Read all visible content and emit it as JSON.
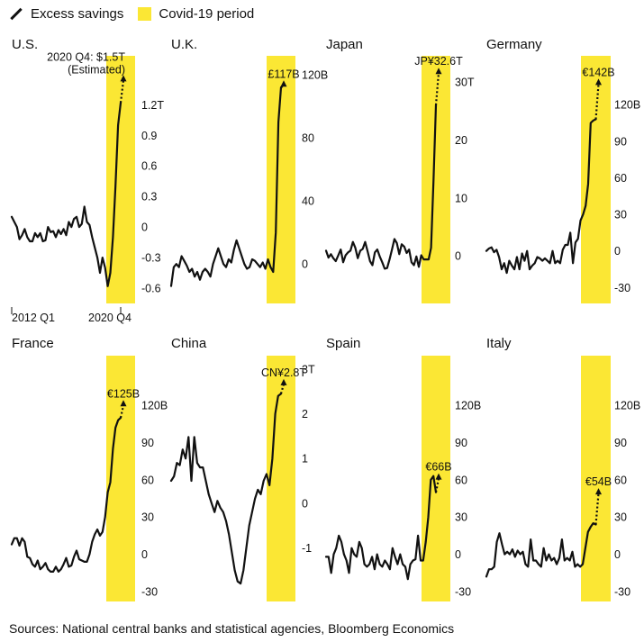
{
  "legend": {
    "line_label": "Excess savings",
    "period_label": "Covid-19 period",
    "line_color": "#111111",
    "period_color": "#fbe734"
  },
  "source": "Sources: National central banks and statistical agencies, Bloomberg Economics",
  "chart_data": [
    {
      "type": "line",
      "title": "U.S.",
      "ticks": [
        {
          "v": 1.2,
          "label": "1.2T"
        },
        {
          "v": 0.9,
          "label": "0.9"
        },
        {
          "v": 0.6,
          "label": "0.6"
        },
        {
          "v": 0.3,
          "label": "0.3"
        },
        {
          "v": 0,
          "label": "0"
        },
        {
          "v": -0.3,
          "label": "-0.3"
        },
        {
          "v": -0.6,
          "label": "-0.6"
        }
      ],
      "ylim": [
        -0.75,
        1.68
      ],
      "xlabels": [
        "2012 Q1",
        "2020 Q4"
      ],
      "annotation": "2020 Q4: $1.5T",
      "annotation2": "(Estimated)",
      "estimate_value": 1.5,
      "values": [
        0.1,
        0.05,
        0.0,
        -0.12,
        -0.08,
        -0.02,
        -0.1,
        -0.14,
        -0.14,
        -0.06,
        -0.1,
        -0.06,
        -0.14,
        -0.13,
        0.0,
        -0.05,
        -0.04,
        -0.1,
        -0.03,
        -0.07,
        -0.02,
        -0.08,
        0.05,
        0.0,
        0.08,
        0.1,
        0.0,
        0.03,
        0.2,
        0.05,
        0.02,
        -0.1,
        -0.2,
        -0.3,
        -0.45,
        -0.3,
        -0.4,
        -0.58,
        -0.45,
        -0.1,
        0.4,
        1.0,
        1.22
      ]
    },
    {
      "type": "line",
      "title": "U.K.",
      "ticks": [
        {
          "v": 120,
          "label": "120B"
        },
        {
          "v": 80,
          "label": "80"
        },
        {
          "v": 40,
          "label": "40"
        },
        {
          "v": 0,
          "label": "0"
        }
      ],
      "ylim": [
        -25,
        132
      ],
      "annotation": "£117B",
      "estimate_value": 117,
      "values": [
        -14,
        -2,
        0,
        -2,
        5,
        2,
        -1,
        -5,
        -3,
        -8,
        -5,
        -10,
        -5,
        -3,
        -5,
        -8,
        0,
        5,
        10,
        5,
        0,
        -2,
        3,
        1,
        9,
        15,
        10,
        5,
        0,
        -3,
        -2,
        3,
        2,
        0,
        -2,
        1,
        -3,
        3,
        -2,
        -5,
        20,
        90,
        112
      ]
    },
    {
      "type": "line",
      "title": "Japan",
      "ticks": [
        {
          "v": 30,
          "label": "30T"
        },
        {
          "v": 20,
          "label": "20"
        },
        {
          "v": 10,
          "label": "10"
        },
        {
          "v": 0,
          "label": "0"
        }
      ],
      "ylim": [
        -8.2,
        34.5
      ],
      "annotation": "JP¥32.6T",
      "estimate_value": 32.6,
      "values": [
        0.9,
        -0.3,
        0.3,
        -0.4,
        -0.9,
        0.1,
        1.1,
        -1.1,
        0.1,
        0.6,
        0.9,
        2.4,
        1.4,
        -0.4,
        0.9,
        1.2,
        2.4,
        0.8,
        -0.9,
        -1.6,
        0.6,
        1.1,
        -0.1,
        -1.1,
        -2.2,
        -2.1,
        -0.6,
        1.1,
        2.9,
        2.2,
        0.3,
        2.0,
        1.6,
        0.5,
        1.1,
        -1.1,
        -1.6,
        -0.1,
        -1.9,
        0.1,
        -0.6,
        -0.6,
        -0.6,
        1.4,
        13,
        26
      ]
    },
    {
      "type": "line",
      "title": "Germany",
      "ticks": [
        {
          "v": 120,
          "label": "120B"
        },
        {
          "v": 90,
          "label": "90"
        },
        {
          "v": 60,
          "label": "60"
        },
        {
          "v": 30,
          "label": "30"
        },
        {
          "v": 0,
          "label": "0"
        },
        {
          "v": -30,
          "label": "-30"
        }
      ],
      "ylim": [
        -43,
        160
      ],
      "annotation": "€142B",
      "estimate_value": 142,
      "values": [
        0,
        2,
        3,
        -1,
        1,
        -5,
        -15,
        -10,
        -18,
        -8,
        -12,
        -15,
        -5,
        -15,
        -2,
        -8,
        0,
        -15,
        -12,
        -10,
        -5,
        -6,
        -8,
        -6,
        -8,
        -10,
        0,
        -10,
        -8,
        -10,
        1,
        5,
        5,
        15,
        -10,
        7,
        10,
        25,
        30,
        37,
        55,
        105,
        107,
        108
      ]
    },
    {
      "type": "line",
      "title": "France",
      "ticks": [
        {
          "v": 120,
          "label": "120B"
        },
        {
          "v": 90,
          "label": "90"
        },
        {
          "v": 60,
          "label": "60"
        },
        {
          "v": 30,
          "label": "30"
        },
        {
          "v": 0,
          "label": "0"
        },
        {
          "v": -30,
          "label": "-30"
        }
      ],
      "ylim": [
        -38,
        160
      ],
      "annotation": "€125B",
      "estimate_value": 125,
      "values": [
        8,
        13,
        13,
        7,
        13,
        10,
        -2,
        -3,
        -8,
        -10,
        -5,
        -12,
        -10,
        -7,
        -12,
        -14,
        -14,
        -10,
        -14,
        -12,
        -8,
        -3,
        -10,
        -9,
        -2,
        3,
        -4,
        -5,
        -6,
        -6,
        0,
        10,
        16,
        20,
        15,
        18,
        30,
        50,
        58,
        85,
        102,
        108,
        110
      ]
    },
    {
      "type": "line",
      "title": "China",
      "ticks": [
        {
          "v": 3,
          "label": "3T"
        },
        {
          "v": 2,
          "label": "2"
        },
        {
          "v": 1,
          "label": "1"
        },
        {
          "v": 0,
          "label": "0"
        },
        {
          "v": -1,
          "label": "-1"
        }
      ],
      "ylim": [
        -2.2,
        3.3
      ],
      "annotation": "CN¥2.8T",
      "estimate_value": 2.8,
      "values": [
        0.5,
        0.6,
        0.9,
        0.85,
        1.2,
        1.0,
        1.48,
        0.5,
        1.48,
        0.9,
        0.8,
        0.8,
        0.5,
        0.2,
        0.0,
        -0.2,
        0.05,
        -0.1,
        -0.2,
        -0.4,
        -0.7,
        -1.1,
        -1.5,
        -1.75,
        -1.8,
        -1.5,
        -1.0,
        -0.5,
        -0.2,
        0.1,
        0.3,
        0.2,
        0.5,
        0.65,
        0.4,
        1.0,
        2.0,
        2.4,
        2.45
      ]
    },
    {
      "type": "line",
      "title": "Spain",
      "ticks": [
        {
          "v": 120,
          "label": "120B"
        },
        {
          "v": 90,
          "label": "90"
        },
        {
          "v": 60,
          "label": "60"
        },
        {
          "v": 30,
          "label": "30"
        },
        {
          "v": 0,
          "label": "0"
        },
        {
          "v": -30,
          "label": "-30"
        }
      ],
      "ylim": [
        -38,
        160
      ],
      "annotation": "€66B",
      "estimate_value": 66,
      "values": [
        -2,
        -2,
        -15,
        0,
        5,
        15,
        10,
        0,
        -5,
        -15,
        5,
        0,
        -2,
        10,
        5,
        -8,
        -10,
        -8,
        -2,
        -12,
        0,
        -8,
        -10,
        -5,
        -8,
        -12,
        5,
        -2,
        -8,
        0,
        -8,
        -10,
        -20,
        -8,
        -5,
        -4,
        15,
        -5,
        -5,
        10,
        30,
        60,
        63,
        50
      ]
    },
    {
      "type": "line",
      "title": "Italy",
      "ticks": [
        {
          "v": 120,
          "label": "120B"
        },
        {
          "v": 90,
          "label": "90"
        },
        {
          "v": 60,
          "label": "60"
        },
        {
          "v": 30,
          "label": "30"
        },
        {
          "v": 0,
          "label": "0"
        },
        {
          "v": -30,
          "label": "-30"
        }
      ],
      "ylim": [
        -38,
        160
      ],
      "annotation": "€54B",
      "estimate_value": 54,
      "values": [
        -18,
        -12,
        -12,
        -10,
        10,
        17,
        8,
        0,
        2,
        0,
        4,
        -2,
        3,
        0,
        2,
        -8,
        -10,
        12,
        -5,
        -5,
        -8,
        -10,
        5,
        -5,
        0,
        -5,
        -3,
        -8,
        -3,
        12,
        -5,
        -3,
        -5,
        2,
        -10,
        -8,
        -10,
        -8,
        5,
        18,
        22,
        25,
        24
      ]
    }
  ]
}
